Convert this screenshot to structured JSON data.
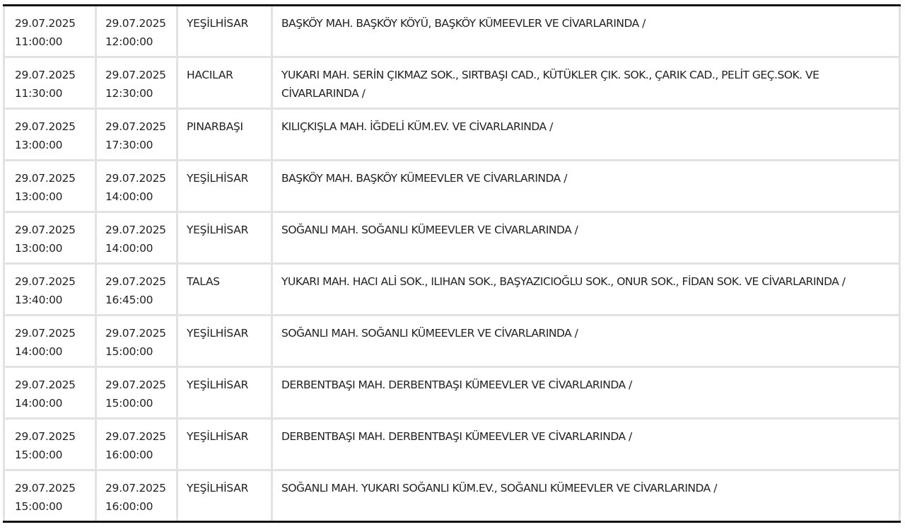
{
  "rows": [
    {
      "start_date": "29.07.2025",
      "start_time": "11:00:00",
      "end_date": "29.07.2025",
      "end_time": "12:00:00",
      "district": "YEŞİLHİSAR",
      "area": "BAŞKÖY MAH. BAŞKÖY KÖYÜ, BAŞKÖY KÜMEEVLER VE CİVARLARINDA /"
    },
    {
      "start_date": "29.07.2025",
      "start_time": "11:30:00",
      "end_date": "29.07.2025",
      "end_time": "12:30:00",
      "district": "HACILAR",
      "area": "YUKARI MAH. SERİN ÇIKMAZ SOK., SIRTBAŞI CAD., KÜTÜKLER ÇIK. SOK., ÇARIK CAD., PELİT GEÇ.SOK. VE CİVARLARINDA /"
    },
    {
      "start_date": "29.07.2025",
      "start_time": "13:00:00",
      "end_date": "29.07.2025",
      "end_time": "17:30:00",
      "district": "PINARBAŞI",
      "area": "KILIÇKIŞLA MAH. İĞDELİ KÜM.EV. VE CİVARLARINDA /"
    },
    {
      "start_date": "29.07.2025",
      "start_time": "13:00:00",
      "end_date": "29.07.2025",
      "end_time": "14:00:00",
      "district": "YEŞİLHİSAR",
      "area": "BAŞKÖY MAH. BAŞKÖY KÜMEEVLER VE CİVARLARINDA /"
    },
    {
      "start_date": "29.07.2025",
      "start_time": "13:00:00",
      "end_date": "29.07.2025",
      "end_time": "14:00:00",
      "district": "YEŞİLHİSAR",
      "area": "SOĞANLI MAH. SOĞANLI KÜMEEVLER VE CİVARLARINDA /"
    },
    {
      "start_date": "29.07.2025",
      "start_time": "13:40:00",
      "end_date": "29.07.2025",
      "end_time": "16:45:00",
      "district": "TALAS",
      "area": "YUKARI MAH. HACI ALİ SOK., ILIHAN SOK., BAŞYAZICIOĞLU SOK., ONUR SOK., FİDAN SOK. VE CİVARLARINDA /"
    },
    {
      "start_date": "29.07.2025",
      "start_time": "14:00:00",
      "end_date": "29.07.2025",
      "end_time": "15:00:00",
      "district": "YEŞİLHİSAR",
      "area": "SOĞANLI MAH. SOĞANLI KÜMEEVLER VE CİVARLARINDA /"
    },
    {
      "start_date": "29.07.2025",
      "start_time": "14:00:00",
      "end_date": "29.07.2025",
      "end_time": "15:00:00",
      "district": "YEŞİLHİSAR",
      "area": "DERBENTBAŞI MAH. DERBENTBAŞI KÜMEEVLER VE CİVARLARINDA /"
    },
    {
      "start_date": "29.07.2025",
      "start_time": "15:00:00",
      "end_date": "29.07.2025",
      "end_time": "16:00:00",
      "district": "YEŞİLHİSAR",
      "area": "DERBENTBAŞI MAH. DERBENTBAŞI KÜMEEVLER VE CİVARLARINDA /"
    },
    {
      "start_date": "29.07.2025",
      "start_time": "15:00:00",
      "end_date": "29.07.2025",
      "end_time": "16:00:00",
      "district": "YEŞİLHİSAR",
      "area": "SOĞANLI MAH. YUKARI SOĞANLI KÜM.EV., SOĞANLI KÜMEEVLER VE CİVARLARINDA /"
    }
  ]
}
